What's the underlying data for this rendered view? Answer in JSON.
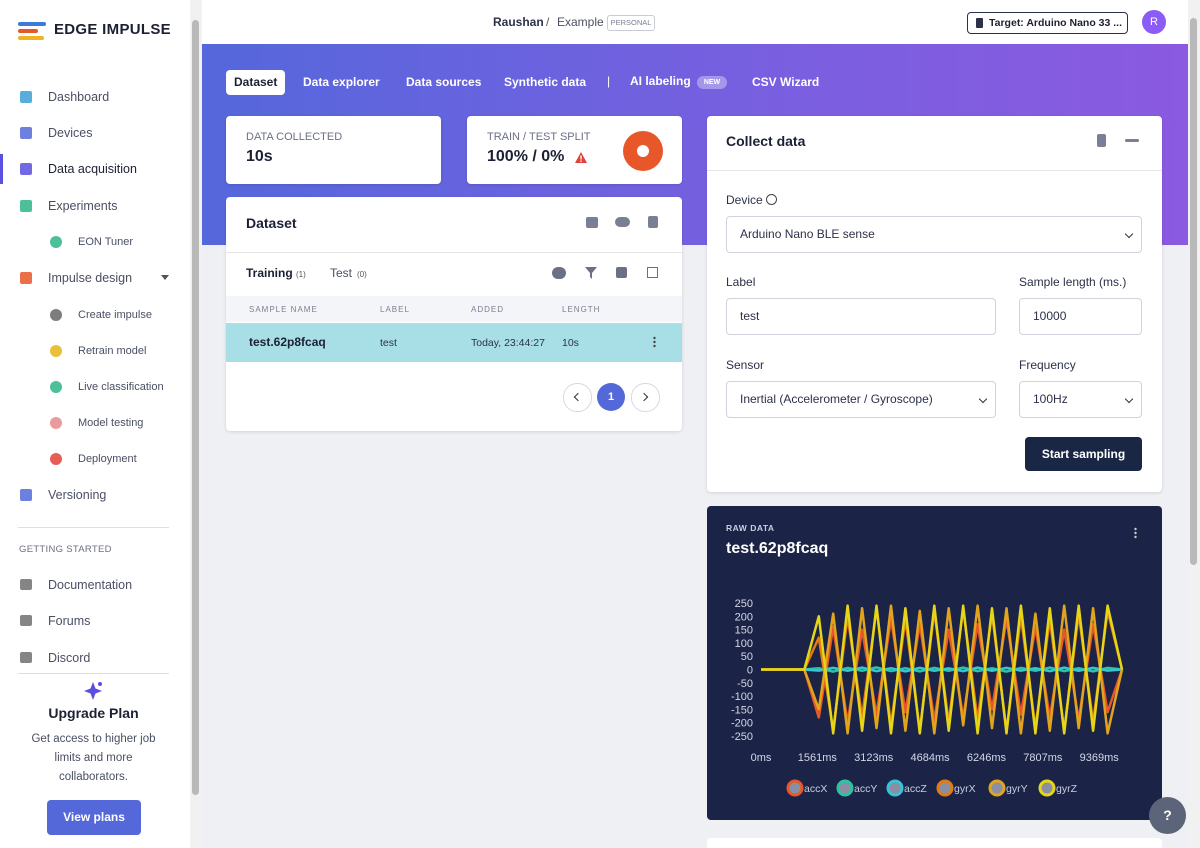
{
  "sidebar": {
    "brand": "EDGE IMPULSE",
    "nav": [
      "Dashboard",
      "Devices",
      "Data acquisition",
      "Experiments",
      "EON Tuner",
      "Impulse design",
      "Create impulse",
      "Retrain model",
      "Live classification",
      "Model testing",
      "Deployment",
      "Versioning"
    ],
    "section": "GETTING STARTED",
    "links": [
      "Documentation",
      "Forums",
      "Discord"
    ],
    "upgrade": {
      "title": "Upgrade Plan",
      "text": "Get access to higher job limits and more collaborators.",
      "button": "View plans"
    }
  },
  "topbar": {
    "user": "Raushan",
    "separator": "/",
    "project": "Example",
    "badge": "PERSONAL",
    "target": "Target: Arduino Nano 33 ...",
    "avatar": "R"
  },
  "tabs": {
    "items": [
      "Dataset",
      "Data explorer",
      "Data sources",
      "Synthetic data",
      "AI labeling",
      "CSV Wizard"
    ],
    "divider": "|",
    "badge": "NEW"
  },
  "stats": {
    "collected_label": "DATA COLLECTED",
    "collected": "10s",
    "split_label": "TRAIN / TEST SPLIT",
    "split": "100% / 0%"
  },
  "dataset": {
    "title": "Dataset",
    "tabs": [
      {
        "label": "Training",
        "count": "(1)"
      },
      {
        "label": "Test",
        "count": "(0)"
      }
    ],
    "columns": [
      "SAMPLE NAME",
      "LABEL",
      "ADDED",
      "LENGTH"
    ],
    "rows": [
      [
        "test.62p8fcaq",
        "test",
        "Today, 23:44:27",
        "10s"
      ]
    ],
    "page": "1"
  },
  "collect": {
    "title": "Collect data",
    "device_label": "Device",
    "device": "Arduino Nano BLE sense",
    "label_label": "Label",
    "label": "test",
    "length_label": "Sample length (ms.)",
    "length": "10000",
    "sensor_label": "Sensor",
    "sensor": "Inertial (Accelerometer / Gyroscope)",
    "frequency_label": "Frequency",
    "frequency": "100Hz",
    "button": "Start sampling"
  },
  "raw_data": {
    "label": "RAW DATA",
    "title": "test.62p8fcaq"
  },
  "help": "?",
  "chart_data": {
    "type": "line",
    "x": [
      0,
      400,
      800,
      1200,
      1600,
      2000,
      2400,
      2800,
      3200,
      3600,
      4000,
      4400,
      4800,
      5200,
      5600,
      6000,
      6400,
      6800,
      7200,
      7600,
      8000,
      8400,
      8800,
      9200,
      9600,
      10000
    ],
    "series": [
      {
        "name": "accX",
        "color": "#e8572a",
        "values": [
          0,
          0,
          0,
          0,
          -180,
          160,
          -200,
          150,
          -170,
          190,
          -160,
          170,
          -190,
          150,
          -180,
          170,
          -150,
          190,
          -170,
          160,
          -180,
          150,
          -190,
          170,
          -160,
          0
        ]
      },
      {
        "name": "accY",
        "color": "#2bc4a0",
        "values": [
          0,
          0,
          0,
          0,
          5,
          -8,
          6,
          -5,
          8,
          -6,
          5,
          -7,
          6,
          -5,
          7,
          -6,
          5,
          -8,
          6,
          -5,
          7,
          -6,
          5,
          -7,
          6,
          0
        ]
      },
      {
        "name": "accZ",
        "color": "#38c3d6",
        "values": [
          0,
          0,
          0,
          0,
          -4,
          6,
          -5,
          7,
          -6,
          5,
          -7,
          6,
          -5,
          4,
          -6,
          7,
          -5,
          6,
          -4,
          5,
          -6,
          7,
          -5,
          6,
          -4,
          0
        ]
      },
      {
        "name": "gyrX",
        "color": "#e47a14",
        "values": [
          0,
          0,
          0,
          0,
          120,
          -230,
          200,
          -180,
          230,
          -210,
          190,
          -230,
          220,
          -200,
          230,
          -190,
          210,
          -230,
          200,
          -220,
          190,
          -230,
          210,
          -200,
          220,
          0
        ]
      },
      {
        "name": "gyrY",
        "color": "#e2a41d",
        "values": [
          0,
          0,
          0,
          0,
          -150,
          210,
          -240,
          230,
          -220,
          240,
          -230,
          220,
          -240,
          230,
          -210,
          240,
          -220,
          230,
          -240,
          210,
          -230,
          240,
          -220,
          230,
          -240,
          0
        ]
      },
      {
        "name": "gyrZ",
        "color": "#e6d617",
        "values": [
          0,
          0,
          0,
          0,
          200,
          -240,
          240,
          -230,
          240,
          -240,
          230,
          -240,
          240,
          -230,
          240,
          -240,
          230,
          -240,
          240,
          -240,
          230,
          -240,
          240,
          -230,
          240,
          0
        ]
      }
    ],
    "xlim": [
      0,
      10000
    ],
    "xticks": [
      {
        "value": 0,
        "label": "0ms"
      },
      {
        "value": 1561,
        "label": "1561ms"
      },
      {
        "value": 3123,
        "label": "3123ms"
      },
      {
        "value": 4684,
        "label": "4684ms"
      },
      {
        "value": 6246,
        "label": "6246ms"
      },
      {
        "value": 7807,
        "label": "7807ms"
      },
      {
        "value": 9369,
        "label": "9369ms"
      }
    ],
    "ylim": [
      -260,
      260
    ],
    "yticks": [
      250,
      200,
      150,
      100,
      50,
      0,
      -50,
      -100,
      -150,
      -200,
      -250
    ],
    "legend": "bottom"
  }
}
